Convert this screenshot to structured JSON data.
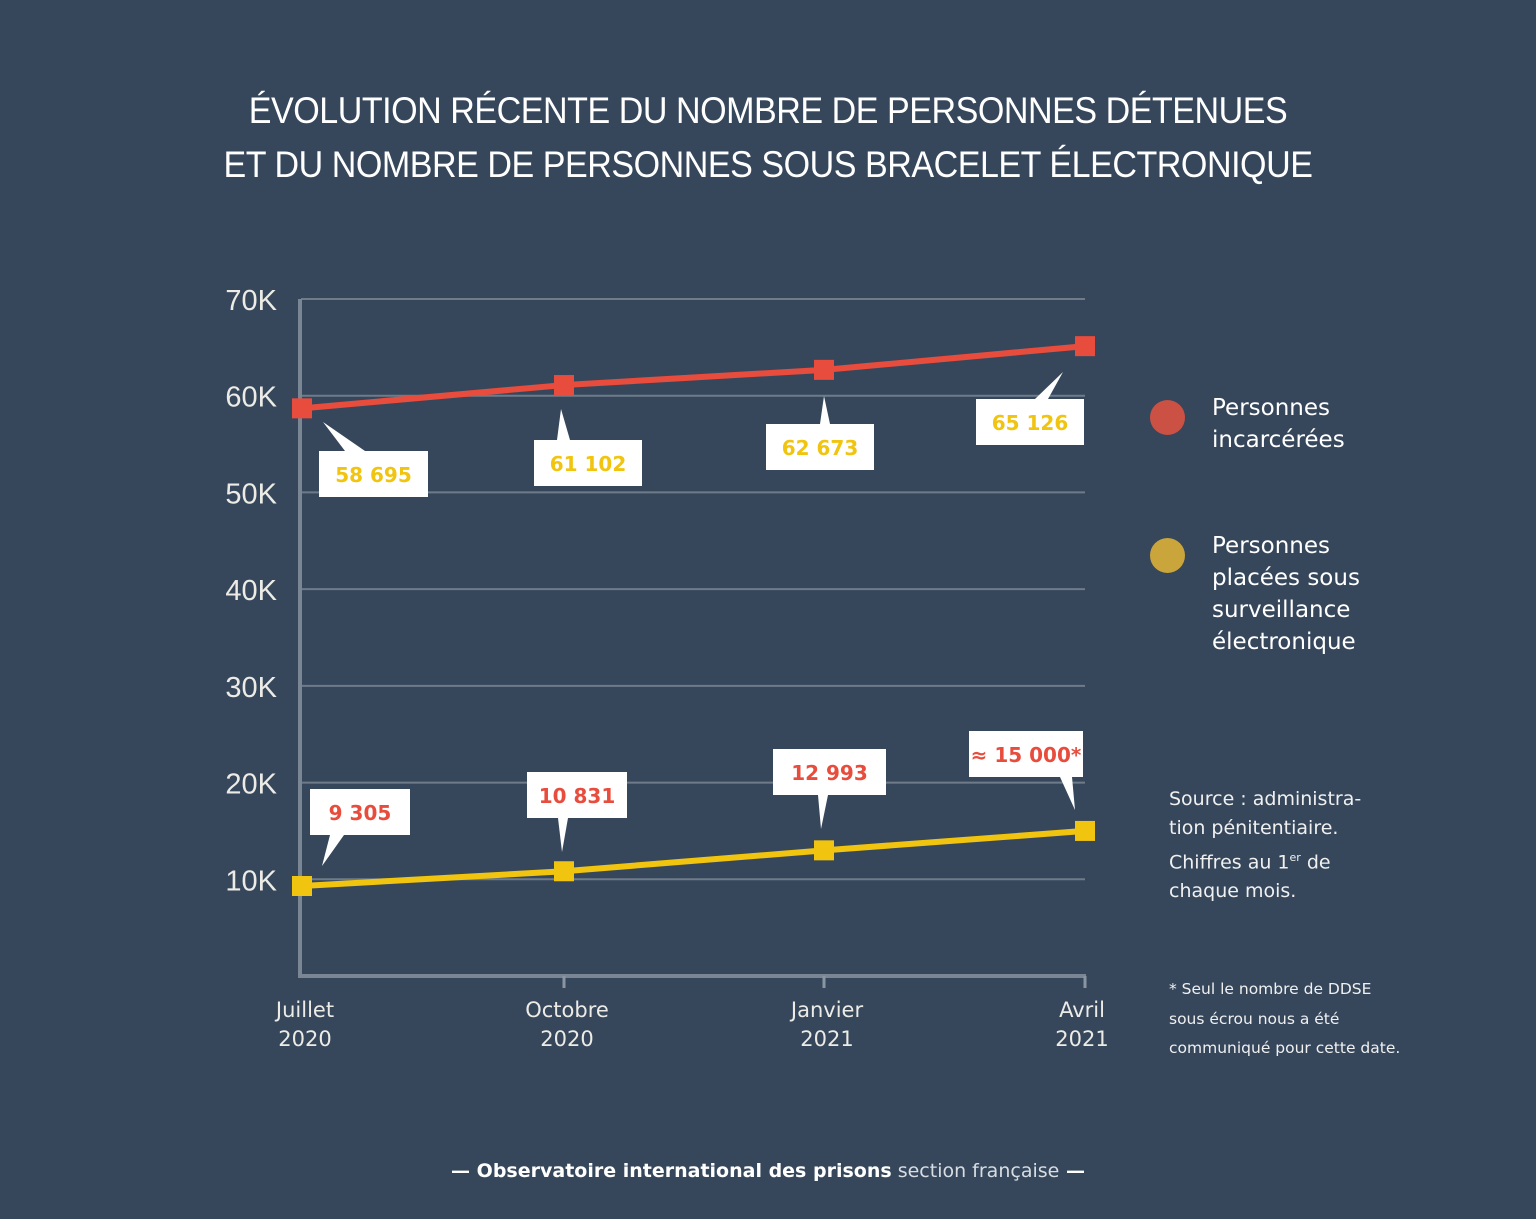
{
  "title": {
    "line1": "ÉVOLUTION RÉCENTE DU NOMBRE DE PERSONNES DÉTENUES",
    "line2": "ET DU NOMBRE DE PERSONNES SOUS BRACELET ÉLECTRONIQUE"
  },
  "colors": {
    "background": "#36475c",
    "incarcerees": "#e84c3d",
    "surveillance": "#f1c40f",
    "legend_incarcerees": "#cb5145",
    "legend_surveillance": "#c9a53c",
    "grid": "#6f7b89",
    "label_box": "#ffffff"
  },
  "legend": [
    {
      "label": "Personnes\nincarcérées",
      "series": "incarcerees"
    },
    {
      "label": "Personnes\nplacées sous\nsurveillance\nélectronique",
      "series": "surveillance"
    }
  ],
  "source": {
    "text_before_sup": "Source : administra-\ntion pénitentiaire.\nChiffres au 1",
    "sup": "er",
    "text_after_sup": " de\nchaque mois."
  },
  "note": "* Seul le nombre de DDSE\nsous écrou nous a été\ncommuniqué pour cette date.",
  "footer": {
    "dash_left": "— ",
    "bold": "Observatoire international des prisons",
    "light": " section française",
    "dash_right": " —"
  },
  "chart_data": {
    "type": "line",
    "title": "ÉVOLUTION RÉCENTE DU NOMBRE DE PERSONNES DÉTENUES ET DU NOMBRE DE PERSONNES SOUS BRACELET ÉLECTRONIQUE",
    "xlabel": "",
    "ylabel": "",
    "categories": [
      "Juillet\n2020",
      "Octobre\n2020",
      "Janvier\n2021",
      "Avril\n2021"
    ],
    "ylim": [
      0,
      70000
    ],
    "yticks": [
      10000,
      20000,
      30000,
      40000,
      50000,
      60000,
      70000
    ],
    "ytick_labels": [
      "10K",
      "20K",
      "30K",
      "40K",
      "50K",
      "60K",
      "70K"
    ],
    "grid": true,
    "legend_position": "right",
    "series": [
      {
        "name": "Personnes incarcérées",
        "key": "incarcerees",
        "values": [
          58695,
          61102,
          62673,
          65126
        ],
        "data_labels": [
          "58 695",
          "61 102",
          "62 673",
          "65 126"
        ]
      },
      {
        "name": "Personnes placées sous surveillance électronique",
        "key": "surveillance",
        "values": [
          9305,
          10831,
          12993,
          15000
        ],
        "data_labels": [
          "9 305",
          "10 831",
          "12 993",
          "≈ 15 000*"
        ]
      }
    ]
  }
}
